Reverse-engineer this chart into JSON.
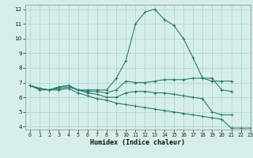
{
  "title": "",
  "xlabel": "Humidex (Indice chaleur)",
  "ylabel": "",
  "xlim": [
    -0.5,
    23
  ],
  "ylim": [
    3.8,
    12.3
  ],
  "yticks": [
    4,
    5,
    6,
    7,
    8,
    9,
    10,
    11,
    12
  ],
  "xticks": [
    0,
    1,
    2,
    3,
    4,
    5,
    6,
    7,
    8,
    9,
    10,
    11,
    12,
    13,
    14,
    15,
    16,
    17,
    18,
    19,
    20,
    21,
    22,
    23
  ],
  "bg_color": "#d6eeea",
  "grid_color": "#b0d8d0",
  "line_color": "#2a7a70",
  "lines": [
    {
      "x": [
        0,
        1,
        2,
        3,
        4,
        5,
        6,
        7,
        8,
        9,
        10,
        11,
        12,
        13,
        14,
        15,
        16,
        17,
        18,
        19,
        20,
        21
      ],
      "y": [
        6.8,
        6.6,
        6.5,
        6.7,
        6.8,
        6.5,
        6.5,
        6.5,
        6.5,
        7.3,
        8.5,
        11.0,
        11.8,
        12.0,
        11.3,
        10.9,
        10.0,
        8.7,
        7.3,
        7.1,
        7.1,
        7.1
      ]
    },
    {
      "x": [
        0,
        1,
        2,
        3,
        4,
        5,
        6,
        7,
        8,
        9,
        10,
        11,
        12,
        13,
        14,
        15,
        16,
        17,
        18,
        19,
        20,
        21
      ],
      "y": [
        6.8,
        6.6,
        6.5,
        6.7,
        6.8,
        6.5,
        6.4,
        6.4,
        6.3,
        6.5,
        7.1,
        7.0,
        7.0,
        7.1,
        7.2,
        7.2,
        7.2,
        7.3,
        7.3,
        7.3,
        6.5,
        6.4
      ]
    },
    {
      "x": [
        0,
        1,
        2,
        3,
        4,
        5,
        6,
        7,
        8,
        9,
        10,
        11,
        12,
        13,
        14,
        15,
        16,
        17,
        18,
        19,
        20,
        21
      ],
      "y": [
        6.8,
        6.6,
        6.5,
        6.6,
        6.7,
        6.5,
        6.3,
        6.2,
        6.0,
        6.0,
        6.3,
        6.4,
        6.4,
        6.3,
        6.3,
        6.2,
        6.1,
        6.0,
        5.9,
        5.0,
        4.8,
        4.8
      ]
    },
    {
      "x": [
        0,
        1,
        2,
        3,
        4,
        5,
        6,
        7,
        8,
        9,
        10,
        11,
        12,
        13,
        14,
        15,
        16,
        17,
        18,
        19,
        20,
        21,
        22,
        23
      ],
      "y": [
        6.8,
        6.5,
        6.5,
        6.5,
        6.6,
        6.3,
        6.1,
        5.9,
        5.8,
        5.6,
        5.5,
        5.4,
        5.3,
        5.2,
        5.1,
        5.0,
        4.9,
        4.8,
        4.7,
        4.6,
        4.5,
        3.9,
        3.9,
        3.9
      ]
    }
  ]
}
